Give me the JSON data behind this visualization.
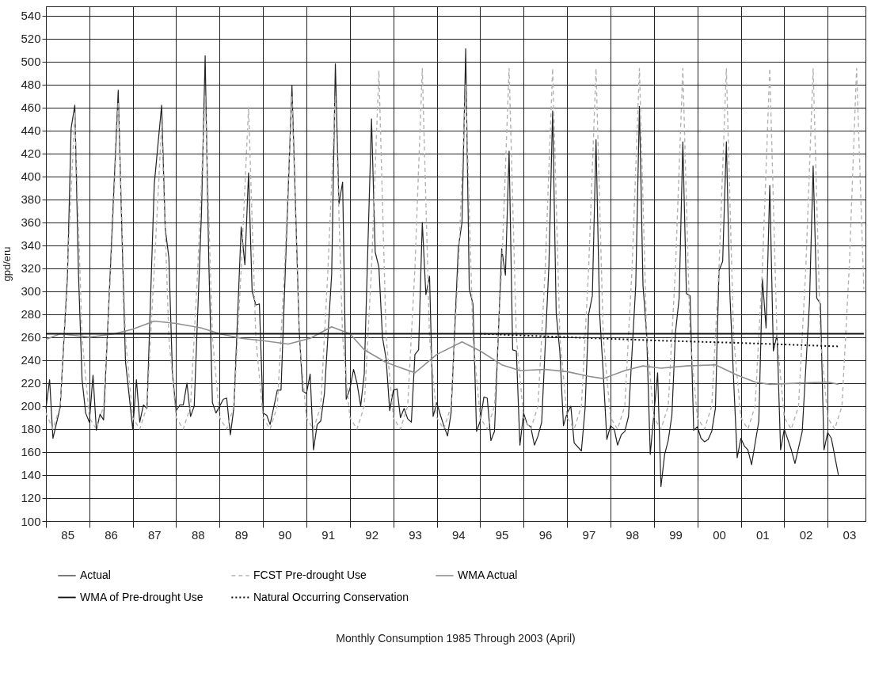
{
  "chart_data": {
    "type": "line",
    "annotations": [
      "Monthly Consumption 1985 Through 2003 (April)"
    ],
    "ylabel": "gpd/eru",
    "xlim": [
      "1985-01-01",
      "2003-11-15"
    ],
    "ylim": [
      100,
      548
    ],
    "yticks": [
      100,
      120,
      140,
      160,
      180,
      200,
      220,
      240,
      260,
      280,
      300,
      320,
      340,
      360,
      380,
      400,
      420,
      440,
      460,
      480,
      500,
      520,
      540
    ],
    "xticks": [
      {
        "value": "1985",
        "label": null
      },
      {
        "value": "1985-07",
        "label": "85"
      },
      {
        "value": "1986",
        "label": null
      },
      {
        "value": "1986-07",
        "label": "86"
      },
      {
        "value": "1987",
        "label": null
      },
      {
        "value": "1987-07",
        "label": "87"
      },
      {
        "value": "1988",
        "label": null
      },
      {
        "value": "1988-07",
        "label": "88"
      },
      {
        "value": "1989",
        "label": null
      },
      {
        "value": "1989-07",
        "label": "89"
      },
      {
        "value": "1990",
        "label": null
      },
      {
        "value": "1990-07",
        "label": "90"
      },
      {
        "value": "1991",
        "label": null
      },
      {
        "value": "1991-07",
        "label": "91"
      },
      {
        "value": "1992",
        "label": null
      },
      {
        "value": "1992-07",
        "label": "92"
      },
      {
        "value": "1993",
        "label": null
      },
      {
        "value": "1993-07",
        "label": "93"
      },
      {
        "value": "1994",
        "label": null
      },
      {
        "value": "1994-07",
        "label": "94"
      },
      {
        "value": "1995",
        "label": null
      },
      {
        "value": "1995-07",
        "label": "95"
      },
      {
        "value": "1996",
        "label": null
      },
      {
        "value": "1996-07",
        "label": "96"
      },
      {
        "value": "1997",
        "label": null
      },
      {
        "value": "1997-07",
        "label": "97"
      },
      {
        "value": "1998",
        "label": null
      },
      {
        "value": "1998-07",
        "label": "98"
      },
      {
        "value": "1999",
        "label": null
      },
      {
        "value": "1999-07",
        "label": "99"
      },
      {
        "value": "2000",
        "label": null
      },
      {
        "value": "2000-07",
        "label": "00"
      },
      {
        "value": "2001",
        "label": null
      },
      {
        "value": "2001-07",
        "label": "01"
      },
      {
        "value": "2002",
        "label": null
      },
      {
        "value": "2002-07",
        "label": "02"
      },
      {
        "value": "2003",
        "label": null
      },
      {
        "value": "2003-07",
        "label": "03"
      }
    ],
    "grid": true,
    "legend": "bottom",
    "marker": "none",
    "series": [
      {
        "name": "Actual",
        "color": "#222222",
        "line_style": "solid",
        "x": [
          "1985-01",
          "1985-02",
          "1985-03",
          "1985-05",
          "1985-07",
          "1985-08",
          "1985-09",
          "1985-10",
          "1985-11",
          "1985-12",
          "1986-01",
          "1986-02",
          "1986-03",
          "1986-04",
          "1986-05",
          "1986-07",
          "1986-09",
          "1986-10",
          "1986-11",
          "1987-01",
          "1987-02",
          "1987-03",
          "1987-04",
          "1987-05",
          "1987-07",
          "1987-09",
          "1987-10",
          "1987-11",
          "1987-12",
          "1988-01",
          "1988-02",
          "1988-03",
          "1988-04",
          "1988-05",
          "1988-06",
          "1988-08",
          "1988-09",
          "1988-10",
          "1988-11",
          "1988-12",
          "1989-02",
          "1989-03",
          "1989-04",
          "1989-05",
          "1989-07",
          "1989-08",
          "1989-09",
          "1989-10",
          "1989-11",
          "1989-12",
          "1990-01",
          "1990-02",
          "1990-03",
          "1990-04",
          "1990-05",
          "1990-06",
          "1990-09",
          "1990-11",
          "1990-12",
          "1991-01",
          "1991-02",
          "1991-03",
          "1991-04",
          "1991-05",
          "1991-06",
          "1991-08",
          "1991-09",
          "1991-10",
          "1991-11",
          "1991-12",
          "1992-01",
          "1992-02",
          "1992-03",
          "1992-04",
          "1992-05",
          "1992-07",
          "1992-08",
          "1992-09",
          "1992-10",
          "1992-11",
          "1992-12",
          "1993-01",
          "1993-02",
          "1993-03",
          "1993-04",
          "1993-05",
          "1993-06",
          "1993-07",
          "1993-08",
          "1993-09",
          "1993-10",
          "1993-11",
          "1993-12",
          "1994-01",
          "1994-02",
          "1994-03",
          "1994-04",
          "1994-05",
          "1994-07",
          "1994-08",
          "1994-09",
          "1994-10",
          "1994-11",
          "1994-12",
          "1995-01",
          "1995-02",
          "1995-03",
          "1995-04",
          "1995-05",
          "1995-07",
          "1995-08",
          "1995-09",
          "1995-10",
          "1995-11",
          "1995-12",
          "1996-01",
          "1996-02",
          "1996-03",
          "1996-04",
          "1996-05",
          "1996-06",
          "1996-08",
          "1996-09",
          "1996-10",
          "1996-11",
          "1996-12",
          "1997-01",
          "1997-02",
          "1997-03",
          "1997-05",
          "1997-06",
          "1997-07",
          "1997-08",
          "1997-09",
          "1997-10",
          "1997-11",
          "1997-12",
          "1998-01",
          "1998-02",
          "1998-03",
          "1998-04",
          "1998-05",
          "1998-06",
          "1998-08",
          "1998-09",
          "1998-10",
          "1998-11",
          "1998-12",
          "1999-02",
          "1999-03",
          "1999-04",
          "1999-05",
          "1999-06",
          "1999-07",
          "1999-08",
          "1999-09",
          "1999-10",
          "1999-11",
          "1999-12",
          "2000-01",
          "2000-02",
          "2000-03",
          "2000-04",
          "2000-05",
          "2000-06",
          "2000-07",
          "2000-08",
          "2000-09",
          "2000-10",
          "2000-11",
          "2000-12",
          "2001-01",
          "2001-02",
          "2001-03",
          "2001-04",
          "2001-06",
          "2001-07",
          "2001-08",
          "2001-09",
          "2001-10",
          "2001-11",
          "2001-12",
          "2002-01",
          "2002-03",
          "2002-04",
          "2002-06",
          "2002-08",
          "2002-09",
          "2002-10",
          "2002-11",
          "2002-12",
          "2003-01",
          "2003-02",
          "2003-04"
        ],
        "values": [
          198,
          223,
          172,
          199,
          313,
          442,
          462,
          318,
          223,
          194,
          186,
          227,
          179,
          193,
          188,
          329,
          475,
          355,
          239,
          180,
          223,
          186,
          201,
          198,
          393,
          462,
          355,
          329,
          228,
          196,
          201,
          201,
          220,
          191,
          200,
          368,
          505,
          329,
          203,
          194,
          206,
          207,
          175,
          199,
          356,
          323,
          403,
          300,
          288,
          289,
          194,
          192,
          184,
          199,
          214,
          214,
          479,
          265,
          213,
          211,
          228,
          162,
          184,
          187,
          211,
          315,
          498,
          376,
          395,
          206,
          215,
          232,
          220,
          200,
          228,
          450,
          334,
          321,
          260,
          241,
          196,
          214,
          215,
          190,
          198,
          189,
          186,
          245,
          249,
          360,
          297,
          313,
          191,
          203,
          192,
          183,
          174,
          194,
          338,
          360,
          511,
          302,
          289,
          178,
          187,
          208,
          207,
          170,
          178,
          337,
          314,
          422,
          249,
          248,
          166,
          194,
          184,
          182,
          166,
          174,
          186,
          323,
          457,
          281,
          247,
          183,
          194,
          200,
          168,
          161,
          198,
          280,
          296,
          432,
          281,
          228,
          171,
          183,
          180,
          166,
          175,
          178,
          191,
          305,
          461,
          305,
          262,
          158,
          229,
          130,
          158,
          170,
          192,
          264,
          294,
          430,
          298,
          296,
          179,
          182,
          172,
          169,
          171,
          178,
          198,
          318,
          326,
          430,
          297,
          223,
          155,
          172,
          165,
          162,
          149,
          187,
          311,
          268,
          392,
          248,
          262,
          162,
          180,
          162,
          150,
          178,
          290,
          409,
          294,
          289,
          162,
          177,
          172,
          140
        ]
      },
      {
        "name": "FCST Pre-drought Use",
        "color": "#b3b3b3",
        "line_style": "dashed",
        "x": [
          "1985-01",
          "1985-03",
          "1985-05",
          "1985-07",
          "1985-09",
          "1985-11",
          "1986-01",
          "1986-03",
          "1986-05",
          "1986-07",
          "1986-09",
          "1986-11",
          "1987-01",
          "1987-03",
          "1987-05",
          "1987-07",
          "1987-09",
          "1987-11",
          "1988-01",
          "1988-03",
          "1988-05",
          "1988-07",
          "1988-09",
          "1988-11",
          "1989-01",
          "1989-03",
          "1989-05",
          "1989-07",
          "1989-09",
          "1989-11",
          "1990-01",
          "1990-03",
          "1990-05",
          "1990-07",
          "1990-09",
          "1990-11",
          "1991-01",
          "1991-03",
          "1991-05",
          "1991-07",
          "1991-09",
          "1991-11",
          "1992-01",
          "1992-03",
          "1992-05",
          "1992-07",
          "1992-09",
          "1992-11",
          "1993-01",
          "1993-03",
          "1993-05",
          "1993-07",
          "1993-09",
          "1993-11",
          "1994-01",
          "1994-03",
          "1994-05",
          "1994-07",
          "1994-09",
          "1994-11",
          "1995-01",
          "1995-03",
          "1995-05",
          "1995-07",
          "1995-09",
          "1995-11",
          "1996-01",
          "1996-03",
          "1996-05",
          "1996-07",
          "1996-09",
          "1996-11",
          "1997-01",
          "1997-03",
          "1997-05",
          "1997-07",
          "1997-09",
          "1997-11",
          "1998-01",
          "1998-03",
          "1998-05",
          "1998-07",
          "1998-09",
          "1998-11",
          "1999-01",
          "1999-03",
          "1999-05",
          "1999-07",
          "1999-09",
          "1999-11",
          "2000-01",
          "2000-03",
          "2000-05",
          "2000-07",
          "2000-09",
          "2000-11",
          "2001-01",
          "2001-03",
          "2001-05",
          "2001-07",
          "2001-09",
          "2001-11",
          "2002-01",
          "2002-03",
          "2002-05",
          "2002-07",
          "2002-09",
          "2002-11",
          "2003-01",
          "2003-03",
          "2003-05",
          "2003-07",
          "2003-09",
          "2003-11"
        ],
        "values": [
          194,
          180,
          200,
          320,
          455,
          260,
          190,
          180,
          200,
          320,
          465,
          260,
          190,
          180,
          200,
          320,
          445,
          260,
          190,
          180,
          200,
          320,
          470,
          260,
          190,
          180,
          200,
          320,
          460,
          260,
          190,
          180,
          200,
          320,
          470,
          260,
          190,
          180,
          200,
          320,
          470,
          260,
          190,
          180,
          200,
          320,
          492,
          260,
          190,
          180,
          200,
          320,
          494,
          260,
          190,
          180,
          200,
          320,
          480,
          260,
          190,
          180,
          200,
          320,
          494,
          260,
          190,
          180,
          200,
          320,
          494,
          260,
          190,
          180,
          200,
          320,
          494,
          260,
          190,
          180,
          200,
          320,
          494,
          260,
          190,
          180,
          200,
          320,
          494,
          260,
          190,
          180,
          200,
          320,
          494,
          260,
          190,
          180,
          200,
          320,
          494,
          260,
          190,
          180,
          200,
          320,
          494,
          260,
          190,
          180,
          200,
          320,
          494,
          302
        ]
      },
      {
        "name": "WMA Actual",
        "color": "#8f8f8f",
        "line_style": "solid",
        "x": [
          "1985-01",
          "1985-05",
          "1986-01",
          "1986-08",
          "1987-01",
          "1987-07",
          "1988-01",
          "1988-08",
          "1989-01",
          "1989-07",
          "1990-01",
          "1990-08",
          "1991-02",
          "1991-08",
          "1992-01",
          "1992-05",
          "1992-11",
          "1993-07",
          "1994-01",
          "1994-08",
          "1995-01",
          "1995-07",
          "1995-12",
          "1996-07",
          "1997-01",
          "1997-07",
          "1997-11",
          "1998-05",
          "1998-10",
          "1999-03",
          "1999-10",
          "2000-06",
          "2000-12",
          "2001-05",
          "2001-09",
          "2002-05",
          "2003-01",
          "2003-04"
        ],
        "values": [
          258,
          263,
          260,
          263,
          267,
          274,
          272,
          268,
          263,
          259,
          257,
          254,
          259,
          269,
          263,
          249,
          238,
          229,
          245,
          256,
          248,
          236,
          231,
          232,
          230,
          226,
          224,
          231,
          235,
          233,
          235,
          236,
          227,
          221,
          219,
          220,
          221,
          219
        ]
      },
      {
        "name": "WMA of Pre-drought Use",
        "color": "#111111",
        "line_style": "solid",
        "x": [
          "1985-01",
          "2003-11"
        ],
        "values": [
          263,
          263
        ]
      },
      {
        "name": "Natural Occurring Conservation",
        "color": "#111111",
        "line_style": "dotted",
        "x": [
          "1995-01",
          "1997-01",
          "1999-03",
          "2001-01",
          "2003-04"
        ],
        "values": [
          263,
          260,
          257,
          255,
          252
        ]
      }
    ]
  }
}
